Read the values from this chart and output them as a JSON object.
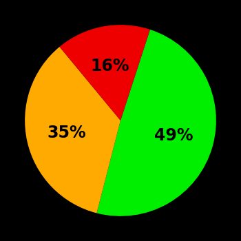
{
  "slices": [
    49,
    35,
    16
  ],
  "colors": [
    "#00ee00",
    "#ffaa00",
    "#ee0000"
  ],
  "labels": [
    "49%",
    "35%",
    "16%"
  ],
  "background_color": "#000000",
  "text_color": "#000000",
  "startangle": 72,
  "figsize": [
    3.5,
    3.5
  ],
  "dpi": 100
}
